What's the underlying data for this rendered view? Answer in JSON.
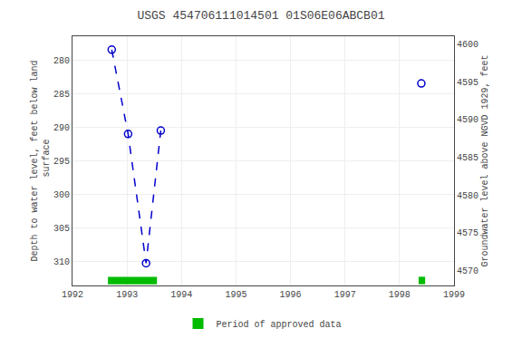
{
  "chart_data": {
    "type": "line",
    "title": "USGS 454706111014501 01S06E06ABCB01",
    "ylabel": "Depth to water level, feet below land\n surface",
    "y2label": "Groundwater level above NGVD 1929, feet",
    "x": [
      1992.72,
      1993.02,
      1993.35,
      1993.62,
      1998.4
    ],
    "series": [
      {
        "color": "#0000cc",
        "marker": "circle-open",
        "line_style": "dashed",
        "values": [
          278.5,
          291.0,
          310.2,
          290.5,
          null
        ]
      },
      {
        "color": "#0000cc",
        "marker": "circle-open",
        "line_style": "none",
        "values": [
          null,
          null,
          null,
          null,
          283.5
        ]
      }
    ],
    "xlim": [
      1992,
      1999
    ],
    "xticks": [
      1992,
      1993,
      1994,
      1995,
      1996,
      1997,
      1998,
      1999
    ],
    "ylim": [
      313.5,
      276.5
    ],
    "yticks": [
      280,
      285,
      290,
      295,
      300,
      305,
      310
    ],
    "y2lim": [
      4568.0,
      4601.0
    ],
    "y2ticks": [
      4570,
      4575,
      4580,
      4585,
      4590,
      4595,
      4600
    ],
    "grid": true,
    "approved_periods": [
      {
        "start": 1992.65,
        "end": 1993.55
      },
      {
        "start": 1998.35,
        "end": 1998.47
      }
    ],
    "approved_label": "Period of approved data",
    "approved_color": "#00bb00",
    "legend": "bottom"
  }
}
